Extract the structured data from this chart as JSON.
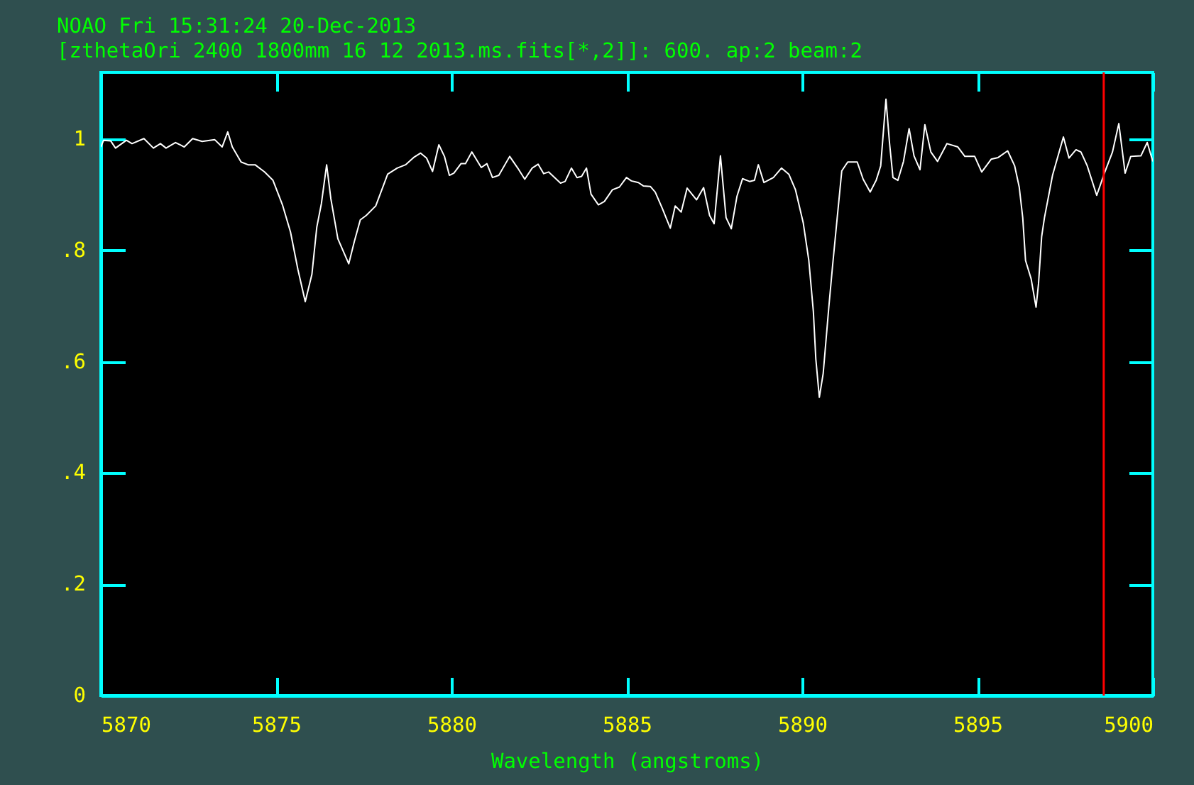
{
  "chart_data": {
    "type": "line",
    "title": "NOAO Fri 15:31:24 20-Dec-2013",
    "subtitle": "[zthetaOri 2400 1800mm 16 12 2013.ms.fits[*,2]]:  600. ap:2 beam:2",
    "xlabel": "Wavelength (angstroms)",
    "x": [
      5870.0,
      5870.08,
      5870.28,
      5870.42,
      5870.73,
      5870.89,
      5871.23,
      5871.5,
      5871.7,
      5871.86,
      5872.13,
      5872.38,
      5872.62,
      5872.89,
      5873.25,
      5873.46,
      5873.62,
      5873.75,
      5874.0,
      5874.2,
      5874.4,
      5874.67,
      5874.91,
      5875.18,
      5875.41,
      5875.62,
      5875.83,
      5876.02,
      5876.16,
      5876.29,
      5876.44,
      5876.56,
      5876.76,
      5877.07,
      5877.23,
      5877.4,
      5877.57,
      5877.84,
      5878.18,
      5878.45,
      5878.69,
      5878.92,
      5879.12,
      5879.29,
      5879.46,
      5879.64,
      5879.8,
      5879.94,
      5880.07,
      5880.27,
      5880.4,
      5880.58,
      5880.85,
      5881.01,
      5881.17,
      5881.35,
      5881.66,
      5881.89,
      5882.09,
      5882.3,
      5882.47,
      5882.63,
      5882.77,
      5883.11,
      5883.24,
      5883.42,
      5883.58,
      5883.71,
      5883.85,
      5883.98,
      5884.19,
      5884.36,
      5884.59,
      5884.79,
      5884.99,
      5885.13,
      5885.33,
      5885.47,
      5885.67,
      5885.81,
      5886.01,
      5886.24,
      5886.38,
      5886.55,
      5886.72,
      5886.99,
      5887.19,
      5887.36,
      5887.49,
      5887.67,
      5887.83,
      5887.98,
      5888.14,
      5888.3,
      5888.5,
      5888.64,
      5888.75,
      5888.91,
      5889.18,
      5889.41,
      5889.62,
      5889.81,
      5890.03,
      5890.19,
      5890.32,
      5890.39,
      5890.49,
      5890.6,
      5890.76,
      5890.87,
      5891.0,
      5891.13,
      5891.3,
      5891.57,
      5891.74,
      5891.94,
      5892.11,
      5892.24,
      5892.39,
      5892.49,
      5892.59,
      5892.73,
      5892.89,
      5893.05,
      5893.19,
      5893.36,
      5893.5,
      5893.67,
      5893.86,
      5894.13,
      5894.44,
      5894.64,
      5894.92,
      5895.12,
      5895.39,
      5895.59,
      5895.86,
      5896.06,
      5896.19,
      5896.29,
      5896.37,
      5896.53,
      5896.67,
      5896.74,
      5896.83,
      5896.91,
      5897.14,
      5897.45,
      5897.61,
      5897.81,
      5897.95,
      5898.13,
      5898.4,
      5898.62,
      5898.85,
      5899.03,
      5899.21,
      5899.37,
      5899.66,
      5899.84,
      5900.0
    ],
    "series": [
      {
        "color": "#ffffff",
        "values": [
          0.986,
          0.998,
          0.997,
          0.984,
          0.998,
          0.992,
          1.001,
          0.984,
          0.992,
          0.984,
          0.994,
          0.986,
          1.001,
          0.996,
          0.999,
          0.986,
          1.013,
          0.986,
          0.959,
          0.954,
          0.954,
          0.941,
          0.926,
          0.882,
          0.833,
          0.766,
          0.708,
          0.757,
          0.842,
          0.884,
          0.954,
          0.893,
          0.821,
          0.776,
          0.816,
          0.855,
          0.863,
          0.88,
          0.937,
          0.948,
          0.954,
          0.967,
          0.975,
          0.966,
          0.942,
          0.99,
          0.969,
          0.935,
          0.939,
          0.956,
          0.956,
          0.977,
          0.949,
          0.956,
          0.931,
          0.935,
          0.969,
          0.948,
          0.928,
          0.948,
          0.955,
          0.938,
          0.941,
          0.921,
          0.924,
          0.948,
          0.931,
          0.933,
          0.948,
          0.901,
          0.882,
          0.888,
          0.909,
          0.914,
          0.931,
          0.925,
          0.922,
          0.916,
          0.915,
          0.905,
          0.876,
          0.84,
          0.88,
          0.869,
          0.912,
          0.891,
          0.913,
          0.863,
          0.848,
          0.97,
          0.859,
          0.839,
          0.897,
          0.929,
          0.924,
          0.926,
          0.954,
          0.922,
          0.931,
          0.948,
          0.937,
          0.909,
          0.85,
          0.782,
          0.69,
          0.605,
          0.536,
          0.579,
          0.698,
          0.774,
          0.859,
          0.943,
          0.959,
          0.959,
          0.928,
          0.905,
          0.926,
          0.952,
          1.072,
          0.994,
          0.931,
          0.926,
          0.96,
          1.019,
          0.97,
          0.945,
          1.026,
          0.977,
          0.96,
          0.992,
          0.986,
          0.969,
          0.969,
          0.941,
          0.964,
          0.967,
          0.979,
          0.952,
          0.914,
          0.859,
          0.782,
          0.749,
          0.698,
          0.74,
          0.825,
          0.859,
          0.935,
          1.004,
          0.966,
          0.981,
          0.977,
          0.952,
          0.899,
          0.939,
          0.977,
          1.028,
          0.939,
          0.969,
          0.97,
          0.994,
          0.96
        ]
      }
    ],
    "xlim": [
      5870,
      5900
    ],
    "ylim": [
      0,
      1.12
    ],
    "xticks": [
      5870,
      5875,
      5880,
      5885,
      5890,
      5895,
      5900
    ],
    "yticks": [
      0,
      {
        "value": 0.2,
        "label": ".2"
      },
      {
        "value": 0.4,
        "label": ".4"
      },
      {
        "value": 0.6,
        "label": ".6"
      },
      {
        "value": 0.8,
        "label": ".8"
      },
      1
    ],
    "ref_lines": [
      {
        "axis": "x",
        "value": 5898.6,
        "color": "#ff0000"
      }
    ]
  }
}
